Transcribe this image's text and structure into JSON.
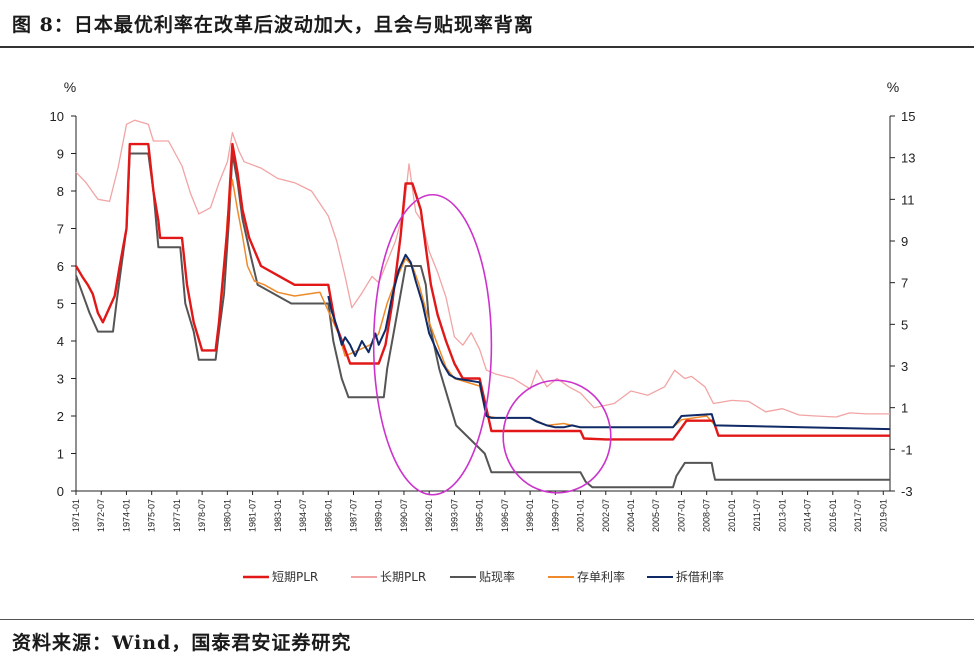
{
  "header": {
    "title": "图 8：日本最优利率在改革后波动加大，且会与贴现率背离"
  },
  "footer": {
    "source": "资料来源：Wind，国泰君安证券研究"
  },
  "chart_data": {
    "type": "line",
    "left_axis": {
      "unit": "%",
      "min": 0,
      "max": 10,
      "ticks": [
        0,
        1,
        2,
        3,
        4,
        5,
        6,
        7,
        8,
        9,
        10
      ]
    },
    "right_axis": {
      "unit": "%",
      "min": -3,
      "max": 15,
      "ticks": [
        -3,
        -1,
        1,
        3,
        5,
        7,
        9,
        11,
        13,
        15
      ]
    },
    "x_range": [
      1971.0,
      2019.4
    ],
    "x_tick_labels": [
      "1971-01",
      "1972-07",
      "1974-01",
      "1975-07",
      "1977-01",
      "1978-07",
      "1980-01",
      "1981-07",
      "1983-01",
      "1984-07",
      "1986-01",
      "1987-07",
      "1989-01",
      "1990-07",
      "1992-01",
      "1993-07",
      "1995-01",
      "1996-07",
      "1998-01",
      "1999-07",
      "2001-01",
      "2002-07",
      "2004-01",
      "2005-07",
      "2007-01",
      "2008-07",
      "2010-01",
      "2011-07",
      "2013-01",
      "2014-07",
      "2016-01",
      "2017-07",
      "2019-01"
    ],
    "legend_position": "bottom",
    "series": [
      {
        "name": "短期PLR",
        "axis": "left",
        "color": "#e21818",
        "width": 2.4,
        "points": [
          [
            1971.0,
            6.0
          ],
          [
            1971.4,
            5.7
          ],
          [
            1971.7,
            5.5
          ],
          [
            1972.0,
            5.25
          ],
          [
            1972.3,
            4.75
          ],
          [
            1972.6,
            4.5
          ],
          [
            1973.3,
            5.2
          ],
          [
            1973.6,
            6.0
          ],
          [
            1974.0,
            7.0
          ],
          [
            1974.2,
            9.25
          ],
          [
            1975.3,
            9.25
          ],
          [
            1975.6,
            8.0
          ],
          [
            1975.9,
            7.2
          ],
          [
            1976.0,
            6.75
          ],
          [
            1977.3,
            6.75
          ],
          [
            1977.6,
            5.5
          ],
          [
            1978.0,
            4.5
          ],
          [
            1978.5,
            3.75
          ],
          [
            1979.3,
            3.75
          ],
          [
            1979.5,
            4.5
          ],
          [
            1979.7,
            5.5
          ],
          [
            1980.0,
            7.0
          ],
          [
            1980.3,
            9.25
          ],
          [
            1980.6,
            8.5
          ],
          [
            1980.9,
            7.5
          ],
          [
            1981.3,
            6.75
          ],
          [
            1982.0,
            6.0
          ],
          [
            1983.0,
            5.75
          ],
          [
            1984.0,
            5.5
          ],
          [
            1986.0,
            5.5
          ],
          [
            1986.4,
            4.5
          ],
          [
            1986.9,
            3.9
          ],
          [
            1987.3,
            3.4
          ],
          [
            1988.0,
            3.4
          ],
          [
            1989.0,
            3.4
          ],
          [
            1989.4,
            3.9
          ],
          [
            1989.8,
            5.0
          ],
          [
            1990.3,
            6.8
          ],
          [
            1990.6,
            8.2
          ],
          [
            1991.0,
            8.2
          ],
          [
            1991.5,
            7.5
          ],
          [
            1991.8,
            6.5
          ],
          [
            1992.1,
            5.5
          ],
          [
            1992.5,
            4.7
          ],
          [
            1993.0,
            4.0
          ],
          [
            1993.5,
            3.4
          ],
          [
            1994.0,
            3.0
          ],
          [
            1995.0,
            3.0
          ],
          [
            1995.4,
            2.2
          ],
          [
            1995.7,
            1.6
          ],
          [
            2001.0,
            1.6
          ],
          [
            2001.2,
            1.4
          ],
          [
            2002.5,
            1.375
          ],
          [
            2006.5,
            1.375
          ],
          [
            2006.9,
            1.625
          ],
          [
            2007.3,
            1.875
          ],
          [
            2008.9,
            1.875
          ],
          [
            2009.2,
            1.475
          ],
          [
            2019.4,
            1.475
          ]
        ]
      },
      {
        "name": "长期PLR",
        "axis": "right",
        "color": "#f2a4a4",
        "width": 1.3,
        "points": [
          [
            1971.0,
            12.3
          ],
          [
            1971.6,
            11.8
          ],
          [
            1972.3,
            11.0
          ],
          [
            1973.0,
            10.9
          ],
          [
            1973.5,
            12.5
          ],
          [
            1974.0,
            14.6
          ],
          [
            1974.5,
            14.8
          ],
          [
            1975.3,
            14.6
          ],
          [
            1975.6,
            13.8
          ],
          [
            1976.5,
            13.8
          ],
          [
            1977.3,
            12.6
          ],
          [
            1977.8,
            11.3
          ],
          [
            1978.3,
            10.3
          ],
          [
            1979.0,
            10.6
          ],
          [
            1979.5,
            11.8
          ],
          [
            1980.0,
            12.8
          ],
          [
            1980.3,
            14.2
          ],
          [
            1980.7,
            13.3
          ],
          [
            1981.0,
            12.8
          ],
          [
            1982.0,
            12.5
          ],
          [
            1983.0,
            12.0
          ],
          [
            1984.0,
            11.8
          ],
          [
            1985.0,
            11.4
          ],
          [
            1985.5,
            10.8
          ],
          [
            1986.0,
            10.2
          ],
          [
            1986.5,
            9.0
          ],
          [
            1987.0,
            7.3
          ],
          [
            1987.4,
            5.8
          ],
          [
            1988.0,
            6.5
          ],
          [
            1988.6,
            7.3
          ],
          [
            1989.0,
            7.0
          ],
          [
            1989.5,
            8.0
          ],
          [
            1990.0,
            9.0
          ],
          [
            1990.5,
            10.5
          ],
          [
            1990.8,
            12.7
          ],
          [
            1991.2,
            10.4
          ],
          [
            1991.6,
            9.9
          ],
          [
            1992.0,
            8.5
          ],
          [
            1992.5,
            7.5
          ],
          [
            1993.0,
            6.3
          ],
          [
            1993.5,
            4.4
          ],
          [
            1994.0,
            4.0
          ],
          [
            1994.5,
            4.6
          ],
          [
            1995.0,
            3.8
          ],
          [
            1995.4,
            2.8
          ],
          [
            1996.0,
            2.6
          ],
          [
            1997.0,
            2.4
          ],
          [
            1998.0,
            1.9
          ],
          [
            1998.4,
            2.8
          ],
          [
            1999.0,
            2.0
          ],
          [
            1999.6,
            2.4
          ],
          [
            2000.3,
            2.0
          ],
          [
            2001.0,
            1.7
          ],
          [
            2001.8,
            1.0
          ],
          [
            2003.0,
            1.2
          ],
          [
            2004.0,
            1.8
          ],
          [
            2005.0,
            1.6
          ],
          [
            2006.0,
            2.0
          ],
          [
            2006.6,
            2.8
          ],
          [
            2007.2,
            2.4
          ],
          [
            2007.6,
            2.5
          ],
          [
            2008.4,
            2.0
          ],
          [
            2008.9,
            1.2
          ],
          [
            2010.0,
            1.35
          ],
          [
            2011.0,
            1.3
          ],
          [
            2012.0,
            0.8
          ],
          [
            2013.0,
            0.95
          ],
          [
            2014.0,
            0.65
          ],
          [
            2015.0,
            0.6
          ],
          [
            2016.2,
            0.55
          ],
          [
            2017.0,
            0.75
          ],
          [
            2018.0,
            0.7
          ],
          [
            2019.4,
            0.7
          ]
        ]
      },
      {
        "name": "贴现率",
        "axis": "left",
        "color": "#555555",
        "width": 2.0,
        "points": [
          [
            1971.0,
            5.75
          ],
          [
            1971.4,
            5.25
          ],
          [
            1971.8,
            4.75
          ],
          [
            1972.3,
            4.25
          ],
          [
            1973.2,
            4.25
          ],
          [
            1973.4,
            5.0
          ],
          [
            1973.7,
            6.0
          ],
          [
            1974.0,
            7.0
          ],
          [
            1974.2,
            9.0
          ],
          [
            1975.3,
            9.0
          ],
          [
            1975.6,
            8.0
          ],
          [
            1975.9,
            6.5
          ],
          [
            1977.2,
            6.5
          ],
          [
            1977.5,
            5.0
          ],
          [
            1978.0,
            4.25
          ],
          [
            1978.3,
            3.5
          ],
          [
            1979.3,
            3.5
          ],
          [
            1979.5,
            4.25
          ],
          [
            1979.8,
            5.25
          ],
          [
            1980.1,
            7.25
          ],
          [
            1980.3,
            9.0
          ],
          [
            1980.6,
            8.25
          ],
          [
            1980.9,
            7.25
          ],
          [
            1981.4,
            6.25
          ],
          [
            1981.8,
            5.5
          ],
          [
            1983.8,
            5.0
          ],
          [
            1986.0,
            5.0
          ],
          [
            1986.3,
            4.0
          ],
          [
            1986.8,
            3.0
          ],
          [
            1987.2,
            2.5
          ],
          [
            1989.3,
            2.5
          ],
          [
            1989.5,
            3.25
          ],
          [
            1989.9,
            4.25
          ],
          [
            1990.3,
            5.25
          ],
          [
            1990.6,
            6.0
          ],
          [
            1991.5,
            6.0
          ],
          [
            1991.8,
            5.5
          ],
          [
            1992.0,
            4.5
          ],
          [
            1992.6,
            3.25
          ],
          [
            1993.1,
            2.5
          ],
          [
            1993.6,
            1.75
          ],
          [
            1995.3,
            1.0
          ],
          [
            1995.7,
            0.5
          ],
          [
            2001.0,
            0.5
          ],
          [
            2001.3,
            0.25
          ],
          [
            2001.7,
            0.1
          ],
          [
            2006.5,
            0.1
          ],
          [
            2006.7,
            0.4
          ],
          [
            2007.2,
            0.75
          ],
          [
            2008.8,
            0.75
          ],
          [
            2008.9,
            0.5
          ],
          [
            2009.0,
            0.3
          ],
          [
            2019.4,
            0.3
          ]
        ]
      },
      {
        "name": "存单利率",
        "axis": "left",
        "color": "#ee8a2a",
        "width": 1.5,
        "points": [
          [
            1979.7,
            5.2
          ],
          [
            1980.0,
            7.3
          ],
          [
            1980.3,
            8.3
          ],
          [
            1980.6,
            7.5
          ],
          [
            1980.9,
            6.8
          ],
          [
            1981.2,
            6.0
          ],
          [
            1981.6,
            5.6
          ],
          [
            1982.2,
            5.5
          ],
          [
            1983.0,
            5.3
          ],
          [
            1984.0,
            5.2
          ],
          [
            1985.5,
            5.3
          ],
          [
            1986.0,
            4.8
          ],
          [
            1986.6,
            4.2
          ],
          [
            1987.0,
            3.6
          ],
          [
            1987.5,
            3.7
          ],
          [
            1988.5,
            3.9
          ],
          [
            1989.0,
            4.2
          ],
          [
            1989.5,
            5.0
          ],
          [
            1990.0,
            5.6
          ],
          [
            1990.6,
            6.2
          ],
          [
            1991.0,
            6.0
          ],
          [
            1991.4,
            5.5
          ],
          [
            1992.0,
            4.5
          ],
          [
            1992.5,
            3.9
          ],
          [
            1993.0,
            3.3
          ],
          [
            1993.5,
            3.0
          ],
          [
            1995.0,
            2.8
          ],
          [
            1995.4,
            2.0
          ],
          [
            1996.0,
            1.95
          ],
          [
            1998.0,
            1.95
          ],
          [
            1999.0,
            1.75
          ],
          [
            2000.0,
            1.8
          ],
          [
            2001.0,
            1.7
          ],
          [
            2006.5,
            1.7
          ],
          [
            2007.0,
            1.9
          ],
          [
            2008.5,
            2.0
          ],
          [
            2009.0,
            1.75
          ],
          [
            2019.4,
            1.65
          ]
        ]
      },
      {
        "name": "拆借利率",
        "axis": "left",
        "color": "#0f2a66",
        "width": 2.0,
        "points": [
          [
            1986.0,
            5.2
          ],
          [
            1986.2,
            4.8
          ],
          [
            1986.5,
            4.4
          ],
          [
            1986.8,
            3.9
          ],
          [
            1987.0,
            4.1
          ],
          [
            1987.3,
            3.9
          ],
          [
            1987.6,
            3.6
          ],
          [
            1988.0,
            4.0
          ],
          [
            1988.4,
            3.7
          ],
          [
            1988.8,
            4.2
          ],
          [
            1989.0,
            3.9
          ],
          [
            1989.4,
            4.3
          ],
          [
            1989.8,
            5.2
          ],
          [
            1990.2,
            5.9
          ],
          [
            1990.6,
            6.3
          ],
          [
            1990.9,
            6.1
          ],
          [
            1991.2,
            5.6
          ],
          [
            1991.6,
            5.0
          ],
          [
            1992.0,
            4.2
          ],
          [
            1992.4,
            3.8
          ],
          [
            1992.8,
            3.4
          ],
          [
            1993.2,
            3.1
          ],
          [
            1993.6,
            3.0
          ],
          [
            1995.0,
            2.9
          ],
          [
            1995.4,
            2.0
          ],
          [
            1995.7,
            1.95
          ],
          [
            1998.0,
            1.95
          ],
          [
            1998.4,
            1.85
          ],
          [
            1999.0,
            1.75
          ],
          [
            1999.5,
            1.7
          ],
          [
            2000.0,
            1.7
          ],
          [
            2000.5,
            1.75
          ],
          [
            2001.0,
            1.7
          ],
          [
            2006.5,
            1.7
          ],
          [
            2007.0,
            2.0
          ],
          [
            2008.8,
            2.05
          ],
          [
            2009.0,
            1.75
          ],
          [
            2019.4,
            1.65
          ]
        ]
      }
    ],
    "annotations": [
      {
        "type": "ellipse",
        "color": "#cc33cc",
        "center_x": 1992.2,
        "center_y": 3.9,
        "rx_years": 3.5,
        "ry_value": 4.0
      },
      {
        "type": "ellipse",
        "color": "#cc33cc",
        "center_x": 1999.6,
        "center_y": 1.45,
        "rx_years": 3.2,
        "ry_value": 1.5
      }
    ]
  }
}
